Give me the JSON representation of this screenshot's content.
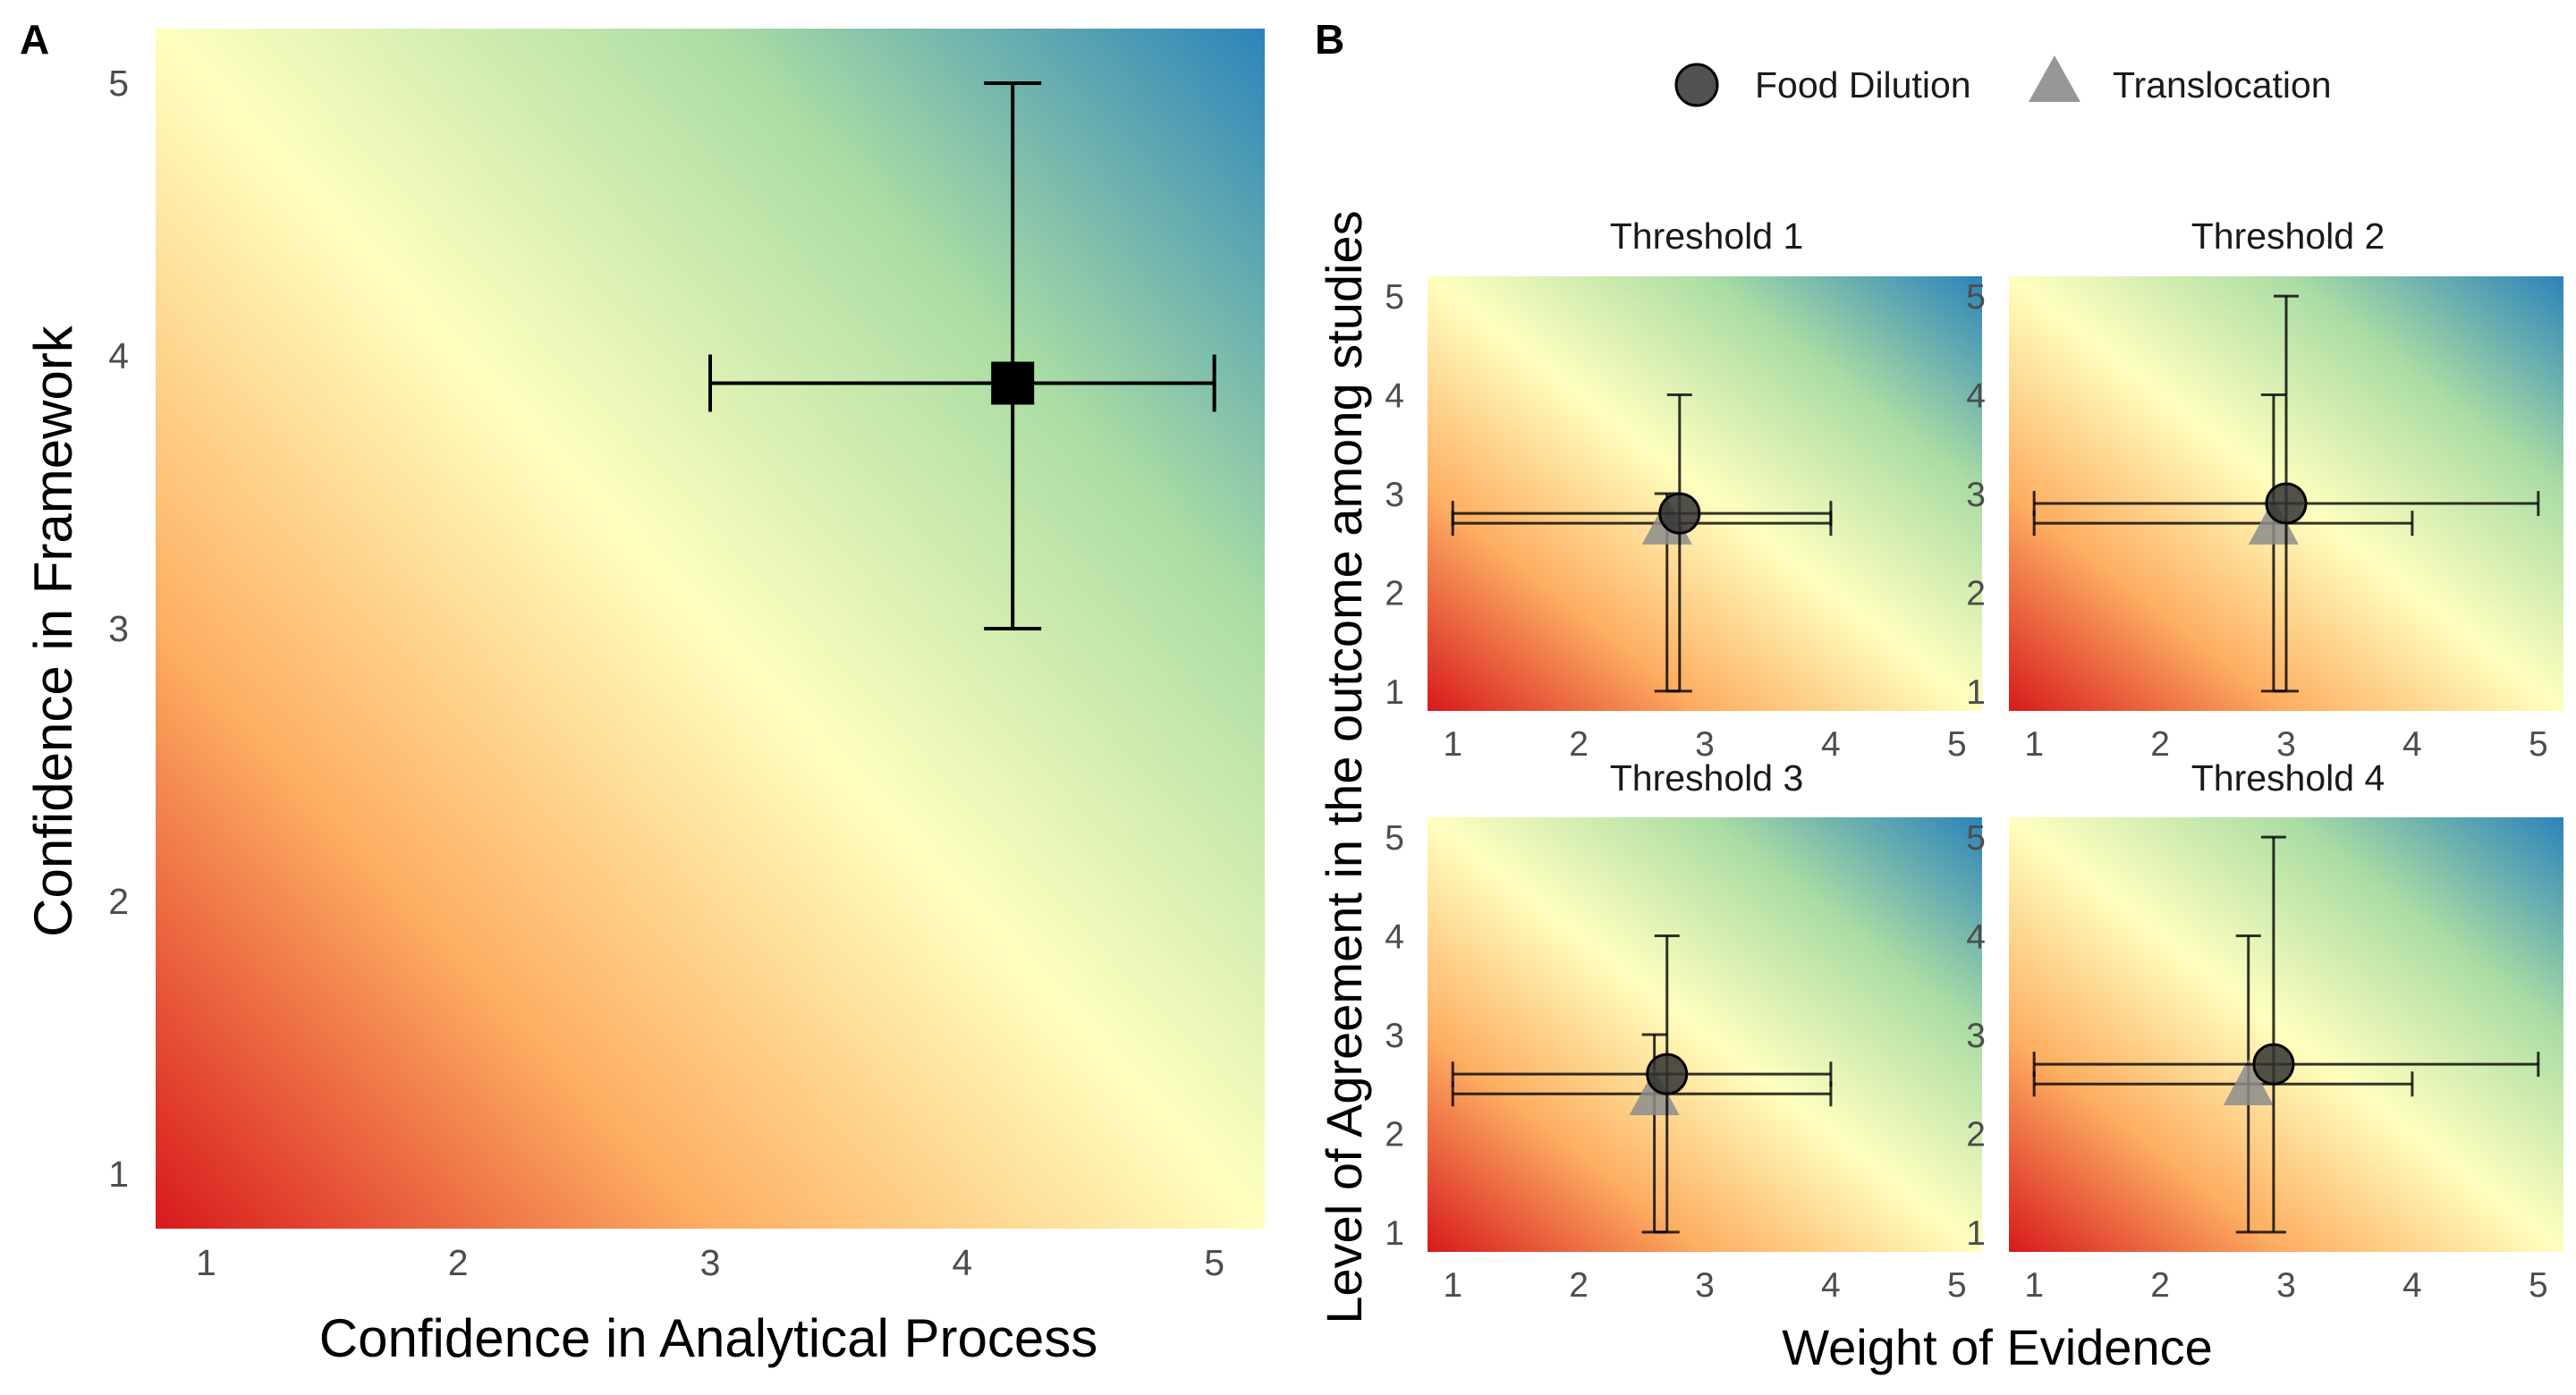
{
  "colors": {
    "gradient_low": "#d7191c",
    "gradient_mid_low": "#fdae61",
    "gradient_mid": "#ffffbf",
    "gradient_mid_high": "#abdda4",
    "gradient_high": "#2b83ba",
    "point_panel_a": "#000000",
    "food_dilution": "#333333",
    "translocation": "#8c8c8c"
  },
  "panel_a": {
    "letter": "A",
    "xlabel": "Confidence in Analytical Process",
    "ylabel": "Confidence in Framework",
    "x_ticks": [
      "1",
      "2",
      "3",
      "4",
      "5"
    ],
    "y_ticks": [
      "1",
      "2",
      "3",
      "4",
      "5"
    ]
  },
  "panel_b": {
    "letter": "B",
    "xlabel": "Weight of Evidence",
    "ylabel": "Level of Agreement in the outcome among studies",
    "x_ticks": [
      "1",
      "2",
      "3",
      "4",
      "5"
    ],
    "y_ticks": [
      "1",
      "2",
      "3",
      "4",
      "5"
    ],
    "legend": {
      "food_dilution": "Food Dilution",
      "translocation": "Translocation"
    },
    "facet_titles": [
      "Threshold 1",
      "Threshold 2",
      "Threshold 3",
      "Threshold 4"
    ]
  },
  "chart_data": [
    {
      "panel": "A",
      "type": "scatter",
      "xlabel": "Confidence in Analytical Process",
      "ylabel": "Confidence in Framework",
      "xlim": [
        0.8,
        5.2
      ],
      "ylim": [
        0.8,
        5.2
      ],
      "background": "diagonal gradient red (low) to yellow to blue (high)",
      "marker": "square",
      "points": [
        {
          "x": 4.2,
          "y": 3.9,
          "x_err": [
            3.0,
            5.0
          ],
          "y_err": [
            3.0,
            5.0
          ]
        }
      ]
    },
    {
      "panel": "B",
      "type": "scatter",
      "xlabel": "Weight of Evidence",
      "ylabel": "Level of Agreement in the outcome among studies",
      "xlim": [
        0.8,
        5.2
      ],
      "ylim": [
        0.8,
        5.2
      ],
      "legend_position": "top",
      "series": [
        "Food Dilution",
        "Translocation"
      ],
      "facets": [
        {
          "title": "Threshold 1",
          "points": [
            {
              "series": "Food Dilution",
              "marker": "circle",
              "x": 2.8,
              "y": 2.8,
              "x_err": [
                1.0,
                4.0
              ],
              "y_err": [
                1.0,
                4.0
              ]
            },
            {
              "series": "Translocation",
              "marker": "triangle",
              "x": 2.7,
              "y": 2.7,
              "x_err": [
                1.0,
                4.0
              ],
              "y_err": [
                1.0,
                3.0
              ]
            }
          ]
        },
        {
          "title": "Threshold 2",
          "points": [
            {
              "series": "Food Dilution",
              "marker": "circle",
              "x": 3.0,
              "y": 2.9,
              "x_err": [
                1.0,
                5.0
              ],
              "y_err": [
                1.0,
                5.0
              ]
            },
            {
              "series": "Translocation",
              "marker": "triangle",
              "x": 2.9,
              "y": 2.7,
              "x_err": [
                1.0,
                4.0
              ],
              "y_err": [
                1.0,
                4.0
              ]
            }
          ]
        },
        {
          "title": "Threshold 3",
          "points": [
            {
              "series": "Food Dilution",
              "marker": "circle",
              "x": 2.7,
              "y": 2.6,
              "x_err": [
                1.0,
                4.0
              ],
              "y_err": [
                1.0,
                4.0
              ]
            },
            {
              "series": "Translocation",
              "marker": "triangle",
              "x": 2.6,
              "y": 2.4,
              "x_err": [
                1.0,
                4.0
              ],
              "y_err": [
                1.0,
                3.0
              ]
            }
          ]
        },
        {
          "title": "Threshold 4",
          "points": [
            {
              "series": "Food Dilution",
              "marker": "circle",
              "x": 2.9,
              "y": 2.7,
              "x_err": [
                1.0,
                5.0
              ],
              "y_err": [
                1.0,
                5.0
              ]
            },
            {
              "series": "Translocation",
              "marker": "triangle",
              "x": 2.7,
              "y": 2.5,
              "x_err": [
                1.0,
                4.0
              ],
              "y_err": [
                1.0,
                4.0
              ]
            }
          ]
        }
      ]
    }
  ]
}
